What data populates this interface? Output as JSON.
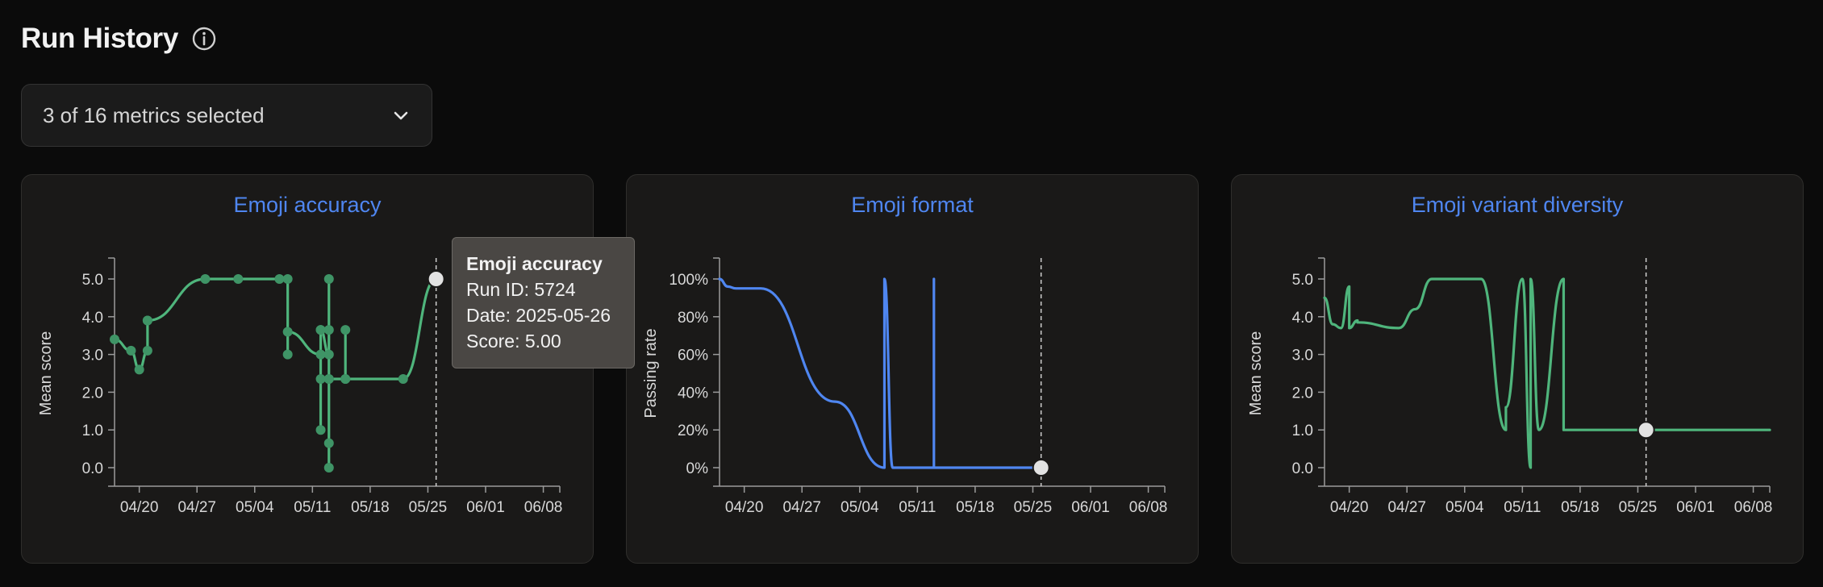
{
  "header": {
    "title": "Run History",
    "info_icon": "info-icon"
  },
  "metric_select": {
    "label": "3 of 16 metrics selected",
    "icon": "chevron-down-icon"
  },
  "tooltip": {
    "title": "Emoji accuracy",
    "run_id": "Run ID: 5724",
    "date": "Date: 2025-05-26",
    "score": "Score: 5.00"
  },
  "colors": {
    "green": "#4fb57c",
    "blue": "#4f86f0",
    "title_blue": "#4f86f0",
    "background": "#0b0b0b",
    "card": "#1a1918"
  },
  "chart_data": [
    {
      "type": "line",
      "title": "Emoji accuracy",
      "ylabel": "Mean score",
      "xlabel": "",
      "x_axis": "date",
      "xlim": [
        "2025-04-17",
        "2025-06-10"
      ],
      "ylim": [
        0,
        5
      ],
      "yticks": [
        "0.0",
        "1.0",
        "2.0",
        "3.0",
        "4.0",
        "5.0"
      ],
      "xticks": [
        "04/20",
        "04/27",
        "05/04",
        "05/11",
        "05/18",
        "05/25",
        "06/01",
        "06/08"
      ],
      "color": "#4fb57c",
      "markers": true,
      "highlight": {
        "x": "2025-05-26",
        "y": 5.0
      },
      "series": [
        {
          "x": [
            "2025-04-17",
            "2025-04-19",
            "2025-04-20",
            "2025-04-21",
            "2025-04-21",
            "2025-04-21",
            "2025-04-28",
            "2025-05-02",
            "2025-05-07",
            "2025-05-08",
            "2025-05-08",
            "2025-05-08",
            "2025-05-12",
            "2025-05-12",
            "2025-05-12",
            "2025-05-12",
            "2025-05-12",
            "2025-05-13",
            "2025-05-13",
            "2025-05-13",
            "2025-05-13",
            "2025-05-13",
            "2025-05-13",
            "2025-05-13",
            "2025-05-15",
            "2025-05-15",
            "2025-05-15",
            "2025-05-22",
            "2025-05-26"
          ],
          "values": [
            3.4,
            3.1,
            2.6,
            3.1,
            3.9,
            3.9,
            5.0,
            5.0,
            5.0,
            5.0,
            3.0,
            3.6,
            3.0,
            3.65,
            1.0,
            2.35,
            3.65,
            3.0,
            5.0,
            3.65,
            2.35,
            0.0,
            0.65,
            2.35,
            2.35,
            3.65,
            2.35,
            2.35,
            5.0
          ]
        }
      ]
    },
    {
      "type": "line",
      "title": "Emoji format",
      "ylabel": "Passing rate",
      "xlabel": "",
      "x_axis": "date",
      "xlim": [
        "2025-04-17",
        "2025-06-10"
      ],
      "ylim": [
        0,
        100
      ],
      "yticks": [
        "0%",
        "20%",
        "40%",
        "60%",
        "80%",
        "100%"
      ],
      "xticks": [
        "04/20",
        "04/27",
        "05/04",
        "05/11",
        "05/18",
        "05/25",
        "06/01",
        "06/08"
      ],
      "color": "#4f86f0",
      "markers": false,
      "highlight": {
        "x": "2025-05-26",
        "y": 0
      },
      "series": [
        {
          "x": [
            "2025-04-17",
            "2025-04-18",
            "2025-04-19",
            "2025-04-22",
            "2025-05-01",
            "2025-05-07",
            "2025-05-07",
            "2025-05-08",
            "2025-05-13",
            "2025-05-13",
            "2025-05-13",
            "2025-05-26"
          ],
          "values": [
            100,
            96,
            95,
            95,
            35,
            0,
            100,
            0,
            0,
            100,
            0,
            0
          ]
        }
      ]
    },
    {
      "type": "line",
      "title": "Emoji variant diversity",
      "ylabel": "Mean score",
      "xlabel": "",
      "x_axis": "date",
      "xlim": [
        "2025-04-17",
        "2025-06-10"
      ],
      "ylim": [
        0,
        5
      ],
      "yticks": [
        "0.0",
        "1.0",
        "2.0",
        "3.0",
        "4.0",
        "5.0"
      ],
      "xticks": [
        "04/20",
        "04/27",
        "05/04",
        "05/11",
        "05/18",
        "05/25",
        "06/01",
        "06/08"
      ],
      "color": "#4fb57c",
      "markers": false,
      "highlight": {
        "x": "2025-05-26",
        "y": 1.0
      },
      "series": [
        {
          "x": [
            "2025-04-17",
            "2025-04-18",
            "2025-04-19",
            "2025-04-20",
            "2025-04-20",
            "2025-04-21",
            "2025-04-21",
            "2025-04-26",
            "2025-04-28",
            "2025-04-30",
            "2025-05-06",
            "2025-05-06",
            "2025-05-09",
            "2025-05-09",
            "2025-05-11",
            "2025-05-11",
            "2025-05-12",
            "2025-05-12",
            "2025-05-13",
            "2025-05-16",
            "2025-05-16",
            "2025-06-10"
          ],
          "values": [
            4.5,
            3.8,
            3.7,
            4.8,
            3.7,
            3.9,
            3.85,
            3.7,
            4.2,
            5.0,
            5.0,
            5.0,
            1.0,
            1.6,
            5.0,
            5.0,
            0.0,
            5.0,
            1.0,
            5.0,
            1.0,
            1.0
          ]
        }
      ]
    }
  ]
}
